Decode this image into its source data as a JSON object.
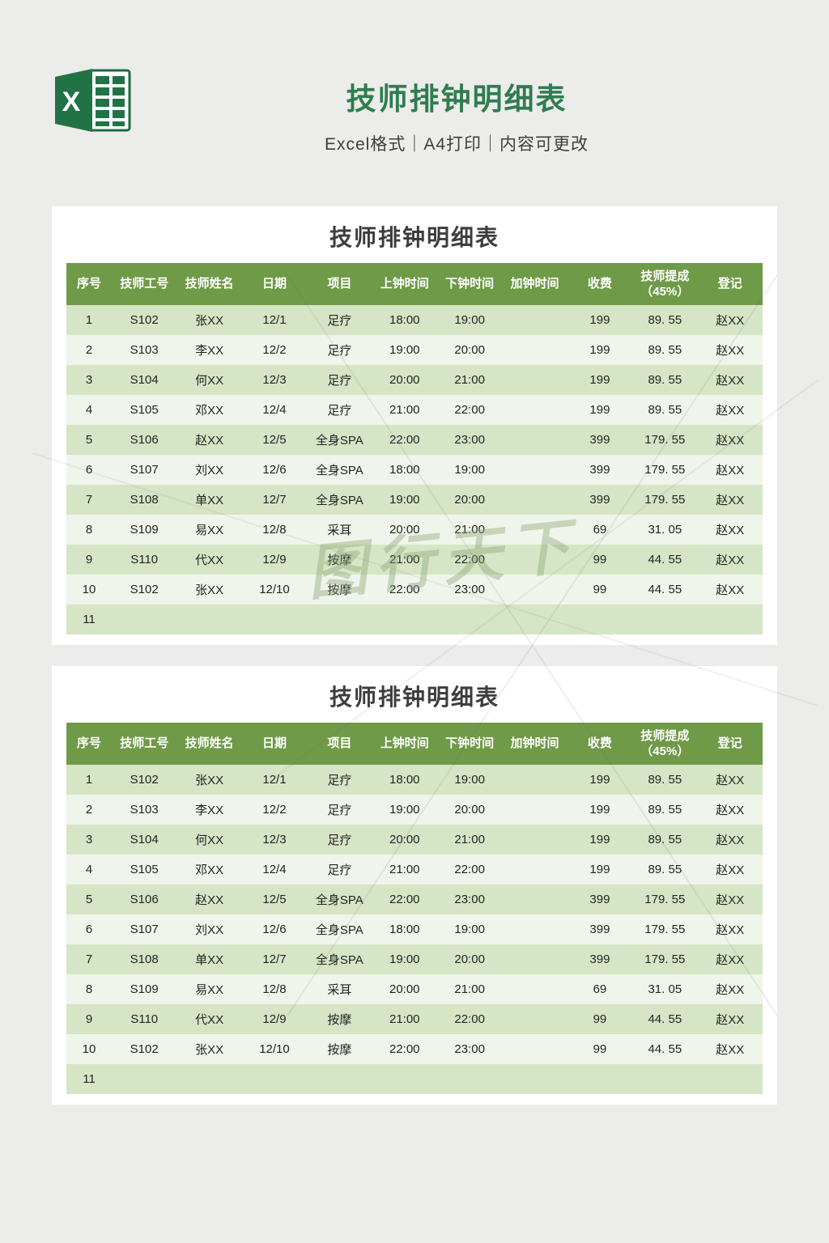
{
  "header": {
    "title": "技师排钟明细表",
    "subtitle": "Excel格式｜A4打印｜内容可更改",
    "logo_letter": "X"
  },
  "watermark": {
    "text": "图行天下"
  },
  "table": {
    "title": "技师排钟明细表",
    "columns": [
      {
        "key": "index",
        "label": "序号"
      },
      {
        "key": "tech-id",
        "label": "技师工号"
      },
      {
        "key": "tech-name",
        "label": "技师姓名"
      },
      {
        "key": "date",
        "label": "日期"
      },
      {
        "key": "project",
        "label": "项目"
      },
      {
        "key": "start-time",
        "label": "上钟时间"
      },
      {
        "key": "end-time",
        "label": "下钟时间"
      },
      {
        "key": "extra-time",
        "label": "加钟时间"
      },
      {
        "key": "fee",
        "label": "收费"
      },
      {
        "key": "commission",
        "label": "技师提成",
        "sublabel": "（45%）"
      },
      {
        "key": "registrar",
        "label": "登记"
      }
    ],
    "rows": [
      [
        "1",
        "S102",
        "张XX",
        "12/1",
        "足疗",
        "18:00",
        "19:00",
        "",
        "199",
        "89. 55",
        "赵XX"
      ],
      [
        "2",
        "S103",
        "李XX",
        "12/2",
        "足疗",
        "19:00",
        "20:00",
        "",
        "199",
        "89. 55",
        "赵XX"
      ],
      [
        "3",
        "S104",
        "何XX",
        "12/3",
        "足疗",
        "20:00",
        "21:00",
        "",
        "199",
        "89. 55",
        "赵XX"
      ],
      [
        "4",
        "S105",
        "邓XX",
        "12/4",
        "足疗",
        "21:00",
        "22:00",
        "",
        "199",
        "89. 55",
        "赵XX"
      ],
      [
        "5",
        "S106",
        "赵XX",
        "12/5",
        "全身SPA",
        "22:00",
        "23:00",
        "",
        "399",
        "179. 55",
        "赵XX"
      ],
      [
        "6",
        "S107",
        "刘XX",
        "12/6",
        "全身SPA",
        "18:00",
        "19:00",
        "",
        "399",
        "179. 55",
        "赵XX"
      ],
      [
        "7",
        "S108",
        "单XX",
        "12/7",
        "全身SPA",
        "19:00",
        "20:00",
        "",
        "399",
        "179. 55",
        "赵XX"
      ],
      [
        "8",
        "S109",
        "易XX",
        "12/8",
        "采耳",
        "20:00",
        "21:00",
        "",
        "69",
        "31. 05",
        "赵XX"
      ],
      [
        "9",
        "S110",
        "代XX",
        "12/9",
        "按摩",
        "21:00",
        "22:00",
        "",
        "99",
        "44. 55",
        "赵XX"
      ],
      [
        "10",
        "S102",
        "张XX",
        "12/10",
        "按摩",
        "22:00",
        "23:00",
        "",
        "99",
        "44. 55",
        "赵XX"
      ],
      [
        "11",
        "",
        "",
        "",
        "",
        "",
        "",
        "",
        "",
        "",
        ""
      ]
    ]
  },
  "colors": {
    "brand_green": "#217346",
    "title_green": "#2f7d50",
    "header_row_green": "#6f9a48",
    "row_odd": "#d6e5c6",
    "row_even": "#eff5eb",
    "commission_red": "#d23b35",
    "page_bg": "#ececea"
  }
}
